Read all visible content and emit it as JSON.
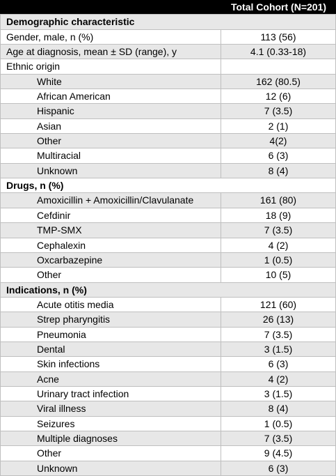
{
  "table": {
    "header": "Total Cohort (N=201)",
    "rows": [
      {
        "label": "Demographic characteristic",
        "section": true
      },
      {
        "label": "Gender, male, n (%)",
        "value": "113 (56)"
      },
      {
        "label": "Age at diagnosis, mean ± SD (range), y",
        "value": "4.1 (0.33-18)"
      },
      {
        "label": "Ethnic origin"
      },
      {
        "label": "White",
        "value": "162 (80.5)",
        "indent": true
      },
      {
        "label": "African American",
        "value": "12 (6)",
        "indent": true
      },
      {
        "label": "Hispanic",
        "value": "7 (3.5)",
        "indent": true
      },
      {
        "label": "Asian",
        "value": "2 (1)",
        "indent": true
      },
      {
        "label": "Other",
        "value": "4(2)",
        "indent": true
      },
      {
        "label": "Multiracial",
        "value": "6 (3)",
        "indent": true
      },
      {
        "label": "Unknown",
        "value": "8 (4)",
        "indent": true
      },
      {
        "label": "Drugs, n (%)",
        "section": true
      },
      {
        "label": "Amoxicillin + Amoxicillin/Clavulanate",
        "value": "161 (80)",
        "indent": true
      },
      {
        "label": "Cefdinir",
        "value": "18 (9)",
        "indent": true
      },
      {
        "label": "TMP-SMX",
        "value": "7 (3.5)",
        "indent": true
      },
      {
        "label": "Cephalexin",
        "value": "4 (2)",
        "indent": true
      },
      {
        "label": "Oxcarbazepine",
        "value": "1 (0.5)",
        "indent": true
      },
      {
        "label": "Other",
        "value": "10 (5)",
        "indent": true
      },
      {
        "label": "Indications, n (%)",
        "section": true
      },
      {
        "label": "Acute otitis media",
        "value": "121 (60)",
        "indent": true
      },
      {
        "label": "Strep pharyngitis",
        "value": "26 (13)",
        "indent": true
      },
      {
        "label": "Pneumonia",
        "value": "7 (3.5)",
        "indent": true
      },
      {
        "label": "Dental",
        "value": "3 (1.5)",
        "indent": true
      },
      {
        "label": "Skin infections",
        "value": "6 (3)",
        "indent": true
      },
      {
        "label": "Acne",
        "value": "4 (2)",
        "indent": true
      },
      {
        "label": "Urinary tract infection",
        "value": "3 (1.5)",
        "indent": true
      },
      {
        "label": "Viral illness",
        "value": "8 (4)",
        "indent": true
      },
      {
        "label": "Seizures",
        "value": "1 (0.5)",
        "indent": true
      },
      {
        "label": "Multiple diagnoses",
        "value": "7 (3.5)",
        "indent": true
      },
      {
        "label": "Other",
        "value": "9 (4.5)",
        "indent": true
      },
      {
        "label": "Unknown",
        "value": "6 (3)",
        "indent": true
      }
    ]
  }
}
